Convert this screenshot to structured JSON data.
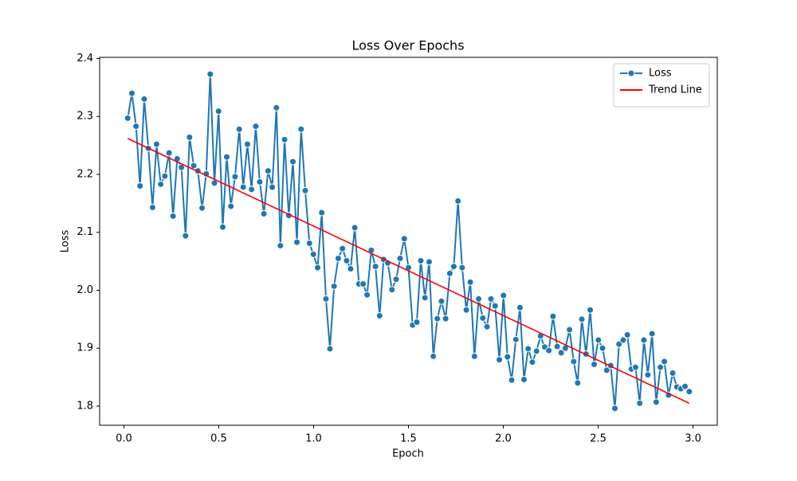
{
  "chart_data": {
    "type": "line",
    "title": "Loss Over Epochs",
    "x_label": "Epoch",
    "y_label": "Loss",
    "xlim": [
      -0.128,
      3.128
    ],
    "ylim": [
      1.767,
      2.402
    ],
    "xticks": [
      {
        "value": 0,
        "label": "0.0"
      },
      0.5,
      {
        "value": 1,
        "label": "1.0"
      },
      1.5,
      {
        "value": 2,
        "label": "2.0"
      },
      2.5,
      {
        "value": 3,
        "label": "3.0"
      }
    ],
    "yticks": [
      1.8,
      1.9,
      {
        "value": 2,
        "label": "2.0"
      },
      2.1,
      2.2,
      2.3,
      2.4
    ],
    "grid": false,
    "legend": "upper right",
    "series": [
      {
        "name": "Loss",
        "color": "#1f77b4",
        "marker": true,
        "x": [
          0.02,
          0.042,
          0.064,
          0.085,
          0.107,
          0.129,
          0.151,
          0.172,
          0.194,
          0.216,
          0.238,
          0.259,
          0.281,
          0.303,
          0.325,
          0.346,
          0.368,
          0.39,
          0.412,
          0.434,
          0.455,
          0.477,
          0.499,
          0.521,
          0.542,
          0.564,
          0.586,
          0.608,
          0.629,
          0.651,
          0.673,
          0.695,
          0.716,
          0.738,
          0.76,
          0.782,
          0.804,
          0.825,
          0.847,
          0.869,
          0.891,
          0.912,
          0.934,
          0.956,
          0.978,
          0.999,
          1.021,
          1.043,
          1.065,
          1.086,
          1.108,
          1.13,
          1.152,
          1.174,
          1.195,
          1.217,
          1.239,
          1.261,
          1.282,
          1.304,
          1.326,
          1.348,
          1.369,
          1.391,
          1.413,
          1.435,
          1.456,
          1.478,
          1.5,
          1.522,
          1.544,
          1.565,
          1.587,
          1.609,
          1.631,
          1.652,
          1.674,
          1.696,
          1.718,
          1.739,
          1.761,
          1.783,
          1.805,
          1.826,
          1.848,
          1.87,
          1.892,
          1.914,
          1.935,
          1.957,
          1.979,
          2.001,
          2.022,
          2.044,
          2.066,
          2.088,
          2.109,
          2.131,
          2.153,
          2.175,
          2.196,
          2.218,
          2.24,
          2.262,
          2.284,
          2.305,
          2.327,
          2.349,
          2.371,
          2.392,
          2.414,
          2.436,
          2.458,
          2.479,
          2.501,
          2.523,
          2.545,
          2.566,
          2.588,
          2.61,
          2.632,
          2.654,
          2.675,
          2.697,
          2.719,
          2.741,
          2.762,
          2.784,
          2.806,
          2.828,
          2.849,
          2.871,
          2.893,
          2.915,
          2.936,
          2.958,
          2.98
        ],
        "values": [
          2.297,
          2.34,
          2.283,
          2.18,
          2.33,
          2.245,
          2.143,
          2.252,
          2.183,
          2.197,
          2.237,
          2.128,
          2.227,
          2.212,
          2.094,
          2.264,
          2.215,
          2.206,
          2.142,
          2.201,
          2.373,
          2.185,
          2.309,
          2.109,
          2.23,
          2.145,
          2.196,
          2.278,
          2.178,
          2.252,
          2.174,
          2.283,
          2.187,
          2.132,
          2.206,
          2.178,
          2.315,
          2.077,
          2.26,
          2.129,
          2.222,
          2.083,
          2.278,
          2.172,
          2.081,
          2.062,
          2.039,
          2.134,
          1.985,
          1.899,
          2.007,
          2.055,
          2.072,
          2.051,
          2.037,
          2.108,
          2.011,
          2.011,
          1.992,
          2.069,
          2.041,
          1.956,
          2.053,
          2.047,
          2.001,
          2.019,
          2.055,
          2.089,
          2.039,
          1.94,
          1.945,
          2.051,
          1.987,
          2.049,
          1.886,
          1.951,
          1.981,
          1.951,
          2.029,
          2.041,
          2.154,
          2.039,
          1.966,
          2.014,
          1.886,
          1.985,
          1.952,
          1.937,
          1.985,
          1.973,
          1.88,
          1.991,
          1.885,
          1.845,
          1.915,
          1.97,
          1.846,
          1.899,
          1.876,
          1.895,
          1.921,
          1.902,
          1.896,
          1.955,
          1.903,
          1.892,
          1.9,
          1.932,
          1.877,
          1.84,
          1.95,
          1.89,
          1.966,
          1.872,
          1.914,
          1.9,
          1.862,
          1.87,
          1.796,
          1.907,
          1.914,
          1.923,
          1.864,
          1.867,
          1.805,
          1.914,
          1.854,
          1.925,
          1.807,
          1.867,
          1.877,
          1.819,
          1.857,
          1.833,
          1.83,
          1.834,
          1.825
        ]
      },
      {
        "name": "Trend Line",
        "color": "#ff0000",
        "marker": false,
        "x": [
          0.02,
          2.98
        ],
        "values": [
          2.262,
          1.805
        ]
      }
    ]
  }
}
